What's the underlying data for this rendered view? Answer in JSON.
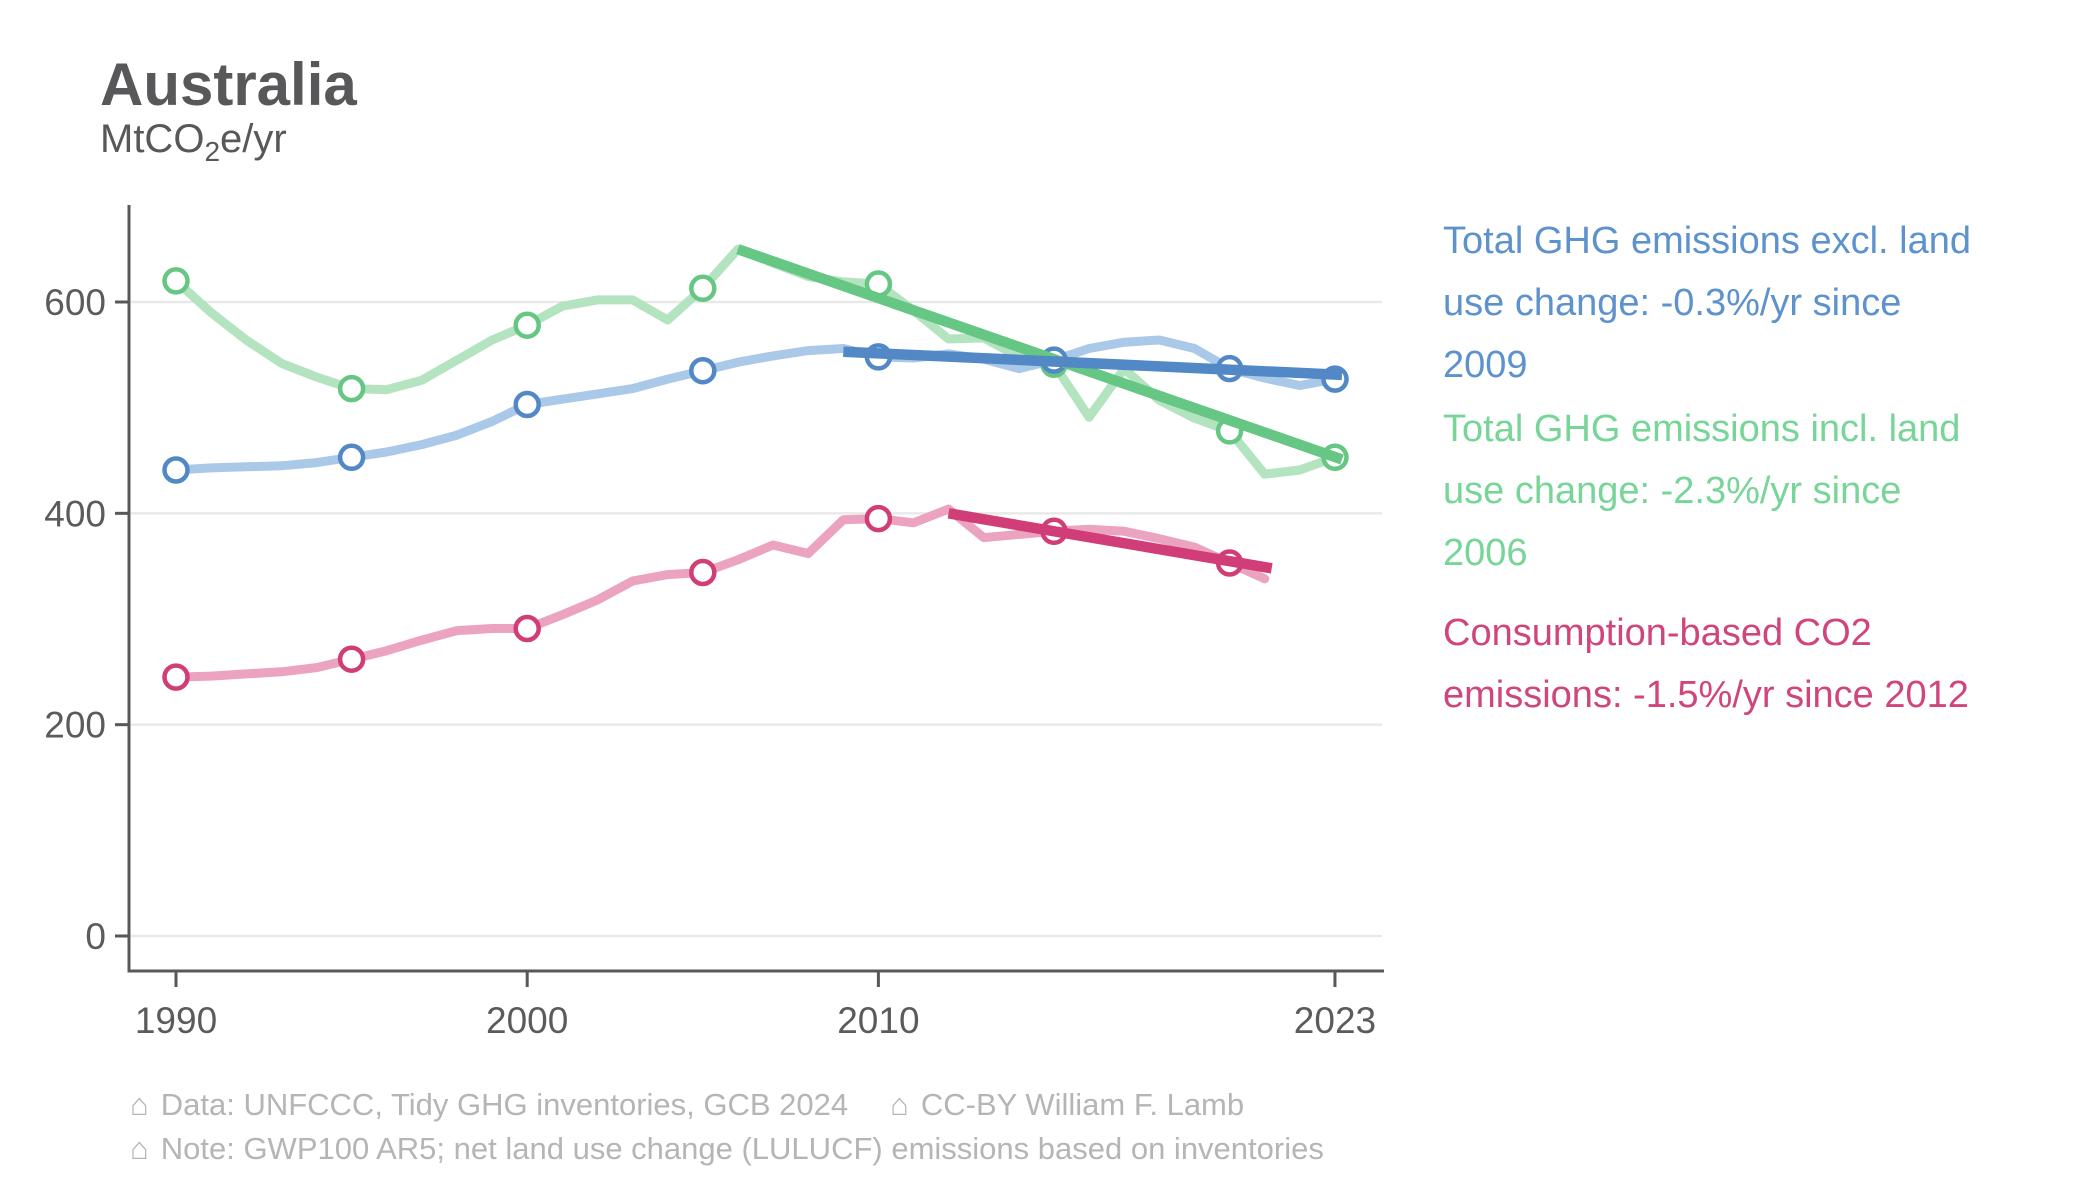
{
  "header": {
    "title": "Australia",
    "unit_prefix": "MtCO",
    "unit_sub": "2",
    "unit_suffix": "e/yr"
  },
  "legend": [
    {
      "name": "legend-ghg-excl-land-use",
      "color": "#5d92cd",
      "lines": [
        "Total GHG emissions excl. land",
        "use change: -0.3%/yr since",
        "2009"
      ]
    },
    {
      "name": "legend-ghg-incl-land-use",
      "color": "#77d598",
      "lines": [
        "Total GHG emissions incl. land",
        "use change: -2.3%/yr since",
        "2006"
      ]
    },
    {
      "name": "legend-consumption-co2",
      "color": "#d0457c",
      "lines": [
        "Consumption-based CO2",
        "emissions: -1.5%/yr since 2012"
      ]
    }
  ],
  "footer": {
    "icon": "⌂",
    "line1_part1": "Data: UNFCCC, Tidy GHG inventories, GCB 2024",
    "line1_part2": "CC-BY William F. Lamb",
    "line2": "Note: GWP100 AR5; net land use change (LULUCF) emissions based on inventories"
  },
  "chart_data": {
    "type": "line",
    "title": "Australia",
    "ylabel": "MtCO2e/yr",
    "ylim": [
      0,
      680
    ],
    "yticks": [
      0,
      200,
      400,
      600
    ],
    "xticks": [
      1990,
      2000,
      2010,
      2023
    ],
    "grid": "horizontal-only",
    "legend_position": "right",
    "series": [
      {
        "name": "Total GHG emissions incl. land use change",
        "start_year": 1990,
        "values": [
          620,
          590,
          564,
          542,
          529,
          518,
          517,
          526,
          545,
          564,
          578,
          596,
          602,
          602,
          583,
          613,
          650,
          637,
          624,
          619,
          617,
          592,
          565,
          566,
          548,
          541,
          491,
          537,
          507,
          490,
          478,
          437,
          441,
          453
        ],
        "marker_years": [
          1990,
          1995,
          2000,
          2005,
          2010,
          2015,
          2020,
          2023
        ],
        "color_line": "#b4e3c0",
        "color_accent": "#66c683",
        "trend": {
          "x": [
            2006,
            2023.2
          ],
          "y": [
            650,
            451
          ],
          "label": "-2.3%/yr since 2006"
        }
      },
      {
        "name": "Total GHG emissions excl. land use change",
        "start_year": 1990,
        "values": [
          441,
          443,
          444,
          445,
          448,
          453,
          458,
          465,
          474,
          487,
          503,
          508,
          513,
          518,
          527,
          535,
          543,
          549,
          554,
          556,
          548,
          547,
          551,
          546,
          537,
          545,
          556,
          562,
          564,
          556,
          537,
          528,
          521,
          527
        ],
        "marker_years": [
          1990,
          1995,
          2000,
          2005,
          2010,
          2015,
          2020,
          2023
        ],
        "color_line": "#aac8e8",
        "color_accent": "#5288c5",
        "trend": {
          "x": [
            2009,
            2023.2
          ],
          "y": [
            553,
            531
          ],
          "label": "-0.3%/yr since 2009"
        }
      },
      {
        "name": "Consumption-based CO2 emissions",
        "start_year": 1990,
        "values": [
          245,
          246,
          248,
          250,
          254,
          262,
          270,
          280,
          289,
          291,
          291,
          304,
          318,
          336,
          342,
          344,
          356,
          370,
          362,
          394,
          395,
          391,
          404,
          377,
          380,
          383,
          385,
          383,
          376,
          368,
          353,
          338
        ],
        "marker_years": [
          1990,
          1995,
          2000,
          2005,
          2010,
          2015,
          2020
        ],
        "color_line": "#eba3bf",
        "color_accent": "#d13d76",
        "trend": {
          "x": [
            2012,
            2021.2
          ],
          "y": [
            400,
            348
          ],
          "label": "-1.5%/yr since 2012"
        }
      }
    ]
  },
  "style_colors": {
    "axis": "#58585a",
    "tick_label": "#5b5b5b",
    "gridline": "#e9e9e9",
    "background": "#ffffff"
  }
}
